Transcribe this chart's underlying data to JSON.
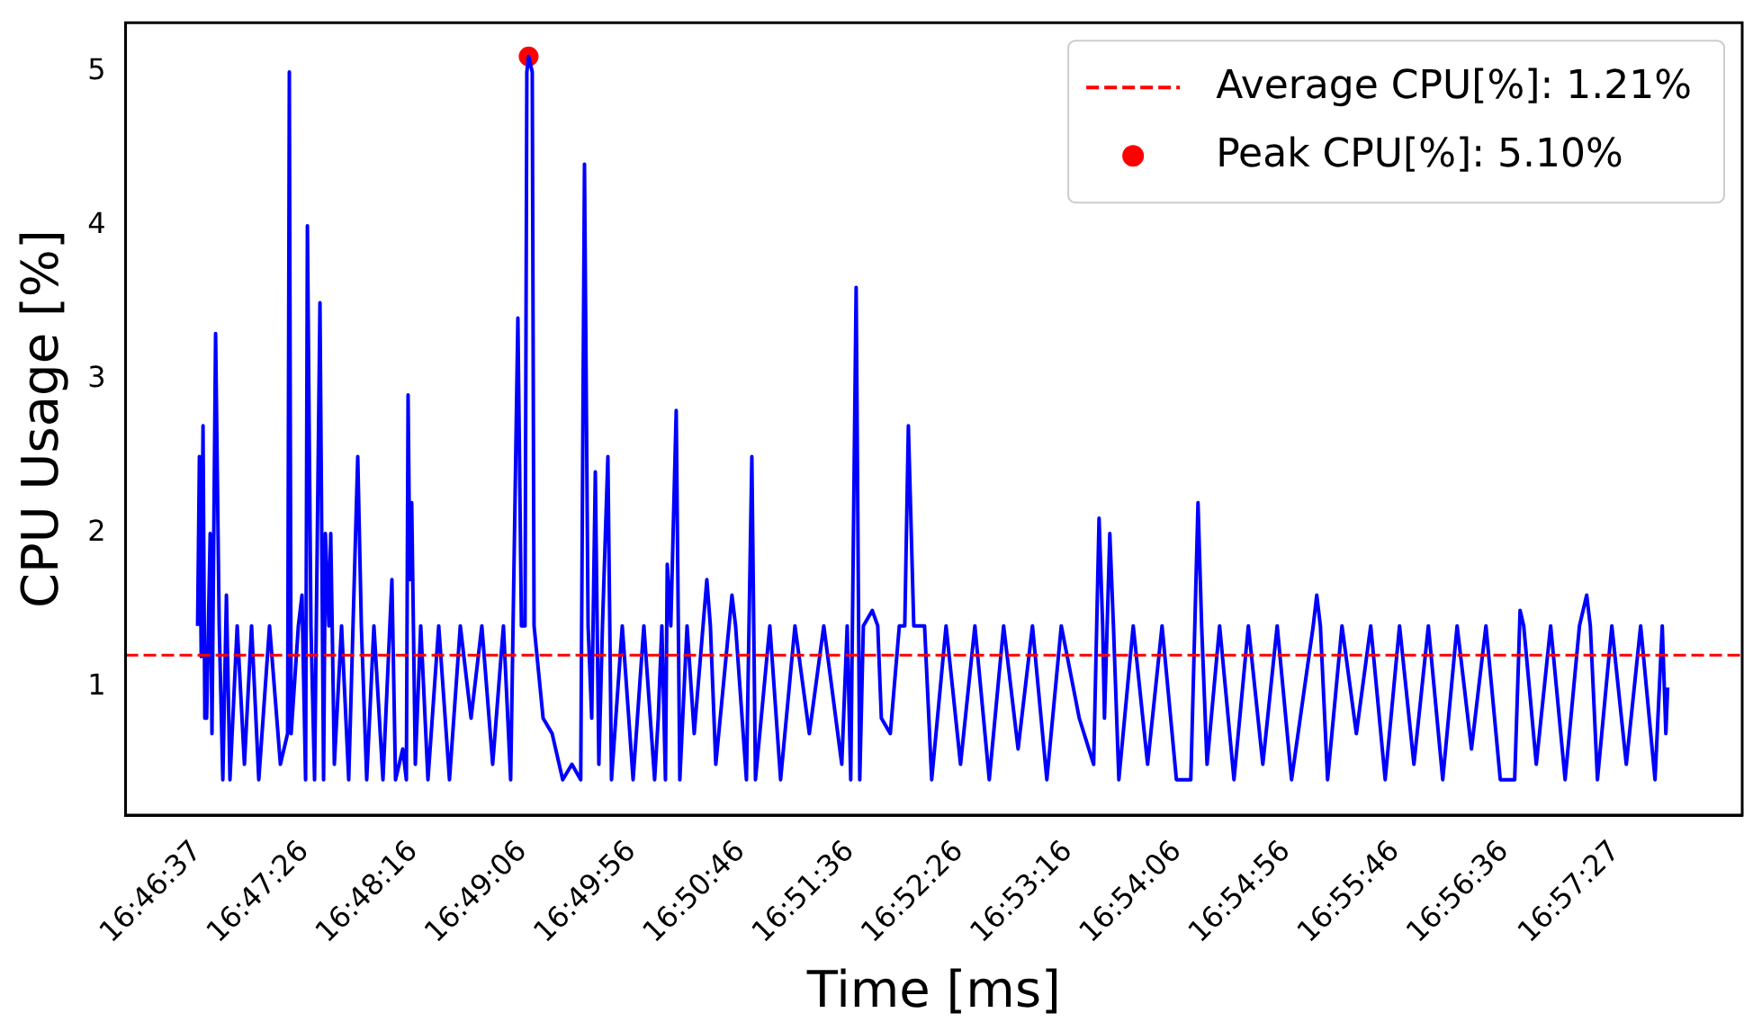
{
  "chart_data": {
    "type": "line",
    "xlabel": "Time [ms]",
    "ylabel": "CPU Usage [%]",
    "xlim": [
      16.76777,
      16.97361
    ],
    "ylim": [
      0.17,
      5.32
    ],
    "xticks": [
      {
        "value": 16.77694,
        "label": "16:46:37"
      },
      {
        "value": 16.79056,
        "label": "16:47:26"
      },
      {
        "value": 16.80444,
        "label": "16:48:16"
      },
      {
        "value": 16.81833,
        "label": "16:49:06"
      },
      {
        "value": 16.83222,
        "label": "16:49:56"
      },
      {
        "value": 16.84611,
        "label": "16:50:46"
      },
      {
        "value": 16.86,
        "label": "16:51:36"
      },
      {
        "value": 16.87389,
        "label": "16:52:26"
      },
      {
        "value": 16.88778,
        "label": "16:53:16"
      },
      {
        "value": 16.90167,
        "label": "16:54:06"
      },
      {
        "value": 16.91556,
        "label": "16:54:56"
      },
      {
        "value": 16.92944,
        "label": "16:55:46"
      },
      {
        "value": 16.94333,
        "label": "16:56:36"
      },
      {
        "value": 16.9575,
        "label": "16:57:27"
      }
    ],
    "yticks": [
      1,
      2,
      3,
      4,
      5
    ],
    "grid": false,
    "legend": "top right",
    "ref_lines": [
      {
        "axis": "y",
        "value": 1.21,
        "label": "Average CPU[%]: 1.21%",
        "color": "#ff0000",
        "line_style": "dashed"
      }
    ],
    "series": [
      {
        "color": "#0000ff",
        "x": [
          16.77694,
          16.77717,
          16.7774,
          16.77763,
          16.77786,
          16.77809,
          16.77854,
          16.77877,
          16.77923,
          16.77969,
          16.78015,
          16.78061,
          16.78106,
          16.78198,
          16.7829,
          16.78381,
          16.78473,
          16.7861,
          16.78748,
          16.7884,
          16.78862,
          16.78885,
          16.78977,
          16.79023,
          16.79069,
          16.79092,
          16.79137,
          16.79183,
          16.79252,
          16.79298,
          16.79321,
          16.79366,
          16.79389,
          16.79435,
          16.79527,
          16.79618,
          16.79733,
          16.79779,
          16.79847,
          16.79939,
          16.80054,
          16.80168,
          16.80214,
          16.80306,
          16.80352,
          16.80374,
          16.80397,
          16.8042,
          16.80466,
          16.80535,
          16.80627,
          16.80764,
          16.80901,
          16.81039,
          16.81176,
          16.81313,
          16.81451,
          16.81588,
          16.8168,
          16.81772,
          16.81817,
          16.81863,
          16.81886,
          16.81909,
          16.81955,
          16.81978,
          16.82093,
          16.82208,
          16.82343,
          16.8246,
          16.82572,
          16.8262,
          16.82666,
          16.82712,
          16.82758,
          16.82803,
          16.82849,
          16.82918,
          16.82964,
          16.83101,
          16.83239,
          16.83376,
          16.83513,
          16.83559,
          16.83605,
          16.83651,
          16.83674,
          16.83719,
          16.83788,
          16.83834,
          16.83926,
          16.84017,
          16.84178,
          16.84223,
          16.84292,
          16.84498,
          16.84544,
          16.84682,
          16.84751,
          16.84797,
          16.8498,
          16.85117,
          16.853,
          16.85483,
          16.85667,
          16.85896,
          16.85965,
          16.8601,
          16.86079,
          16.86125,
          16.86171,
          16.86285,
          16.86354,
          16.864,
          16.86514,
          16.86629,
          16.86698,
          16.86744,
          16.86813,
          16.8695,
          16.87041,
          16.87224,
          16.87408,
          16.87591,
          16.87774,
          16.87957,
          16.88141,
          16.88324,
          16.88507,
          16.88691,
          16.8892,
          16.89103,
          16.89172,
          16.89218,
          16.89241,
          16.89309,
          16.89355,
          16.89424,
          16.89607,
          16.8979,
          16.89974,
          16.90157,
          16.9034,
          16.90432,
          16.90478,
          16.90547,
          16.90707,
          16.9089,
          16.91073,
          16.91257,
          16.9144,
          16.91623,
          16.91899,
          16.91944,
          16.9199,
          16.92082,
          16.92265,
          16.92448,
          16.92631,
          16.92815,
          16.92998,
          16.93181,
          16.93365,
          16.93548,
          16.93731,
          16.93914,
          16.94098,
          16.94281,
          16.94464,
          16.94533,
          16.94579,
          16.94739,
          16.94922,
          16.95106,
          16.95289,
          16.95381,
          16.95427,
          16.95518,
          16.95701,
          16.95885,
          16.96068,
          16.96251,
          16.96343,
          16.96389,
          16.96412
        ],
        "values": [
          1.4,
          2.5,
          1.2,
          2.7,
          0.8,
          0.8,
          2.0,
          0.7,
          3.3,
          1.4,
          0.4,
          1.6,
          0.4,
          1.4,
          0.5,
          1.4,
          0.4,
          1.4,
          0.5,
          0.7,
          5.0,
          0.7,
          1.4,
          1.6,
          0.4,
          4.0,
          1.4,
          0.4,
          3.5,
          0.4,
          2.0,
          1.4,
          2.0,
          0.5,
          1.4,
          0.4,
          2.5,
          1.4,
          0.4,
          1.4,
          0.4,
          1.7,
          0.4,
          0.6,
          0.4,
          2.9,
          1.7,
          2.2,
          0.5,
          1.4,
          0.4,
          1.4,
          0.4,
          1.4,
          0.8,
          1.4,
          0.5,
          1.4,
          0.4,
          3.4,
          1.4,
          1.4,
          5.0,
          5.1,
          5.0,
          1.4,
          0.8,
          0.7,
          0.4,
          0.5,
          0.4,
          4.4,
          1.4,
          0.8,
          2.4,
          0.5,
          1.4,
          2.5,
          0.4,
          1.4,
          0.4,
          1.4,
          0.4,
          0.8,
          1.4,
          0.4,
          1.8,
          1.4,
          2.8,
          0.4,
          1.4,
          0.7,
          1.7,
          1.4,
          0.5,
          1.6,
          1.4,
          0.4,
          2.5,
          0.4,
          1.4,
          0.4,
          1.4,
          0.7,
          1.4,
          0.5,
          1.4,
          0.4,
          3.6,
          0.4,
          1.4,
          1.5,
          1.4,
          0.8,
          0.7,
          1.4,
          1.4,
          2.7,
          1.4,
          1.4,
          0.4,
          1.4,
          0.5,
          1.4,
          0.4,
          1.4,
          0.6,
          1.4,
          0.4,
          1.4,
          0.8,
          0.5,
          2.1,
          1.4,
          0.8,
          2.0,
          1.4,
          0.4,
          1.4,
          0.5,
          1.4,
          0.4,
          0.4,
          2.2,
          1.4,
          0.5,
          1.4,
          0.4,
          1.4,
          0.5,
          1.4,
          0.4,
          1.4,
          1.6,
          1.4,
          0.4,
          1.4,
          0.7,
          1.4,
          0.4,
          1.4,
          0.5,
          1.4,
          0.4,
          1.4,
          0.6,
          1.4,
          0.4,
          0.4,
          1.5,
          1.4,
          0.5,
          1.4,
          0.4,
          1.4,
          1.6,
          1.4,
          0.4,
          1.4,
          0.5,
          1.4,
          0.4,
          1.4,
          0.7,
          1.0
        ]
      },
      {
        "type": "scatter",
        "name": "Peak CPU[%]: 5.10%",
        "color": "#ff0000",
        "x": [
          16.81909
        ],
        "values": [
          5.1
        ]
      }
    ]
  }
}
